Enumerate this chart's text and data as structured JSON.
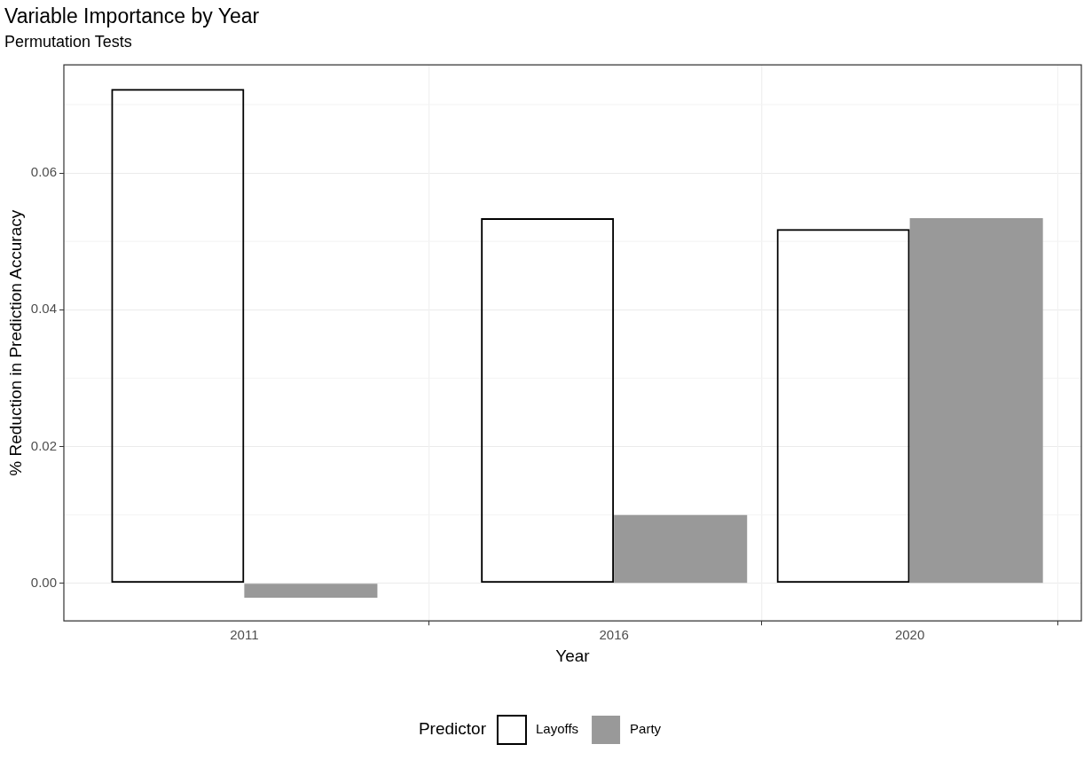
{
  "chart_data": {
    "type": "bar",
    "title": "Variable Importance by Year",
    "subtitle": "Permutation Tests",
    "xlabel": "Year",
    "ylabel": "% Reduction in Prediction Accuracy",
    "legend_title": "Predictor",
    "x": [
      2011,
      2016,
      2020
    ],
    "xlim": [
      2008.56,
      2022.32
    ],
    "xticks": [
      2011,
      2016,
      2020
    ],
    "ylim": [
      -0.0055,
      0.0758
    ],
    "yticks": [
      {
        "value": 0,
        "label": "0.00"
      },
      {
        "value": 0.02,
        "label": "0.02"
      },
      {
        "value": 0.04,
        "label": "0.04"
      },
      {
        "value": 0.06,
        "label": "0.06"
      }
    ],
    "series": [
      {
        "name": "Layoffs",
        "color": "#000000",
        "values": [
          0.0723,
          0.0534,
          0.0518
        ]
      },
      {
        "name": "Party",
        "color": "#999999",
        "values": [
          -0.0021,
          0.01,
          0.0534
        ]
      }
    ],
    "grid": true,
    "legend": "bottom"
  }
}
